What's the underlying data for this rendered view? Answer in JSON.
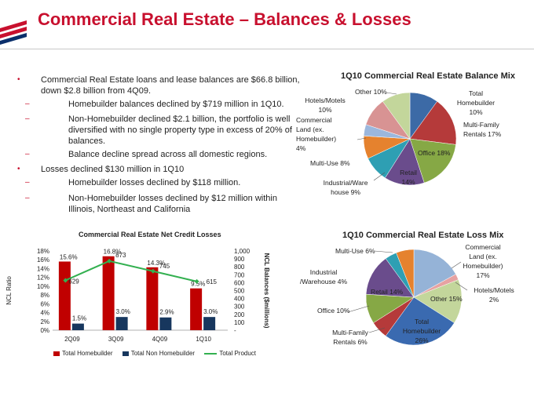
{
  "slide": {
    "title": "Commercial Real Estate – Balances & Losses"
  },
  "bullets": [
    {
      "level": 1,
      "text": "Commercial Real Estate loans and lease balances are $66.8 billion, down $2.8 billion from 4Q09."
    },
    {
      "level": 2,
      "text": "Homebuilder balances declined by $719 million in 1Q10."
    },
    {
      "level": 2,
      "text": "Non-Homebuilder  declined $2.1 billion, the portfolio is well diversified with no single property type in excess of 20% of balances."
    },
    {
      "level": 2,
      "text": "Balance decline spread across all domestic regions."
    },
    {
      "level": 1,
      "text": "Losses declined $130 million in 1Q10"
    },
    {
      "level": 2,
      "text": "Homebuilder losses declined by $118 million."
    },
    {
      "level": 2,
      "text": "Non-Homebuilder losses declined by $12 million within Illinois, Northeast and California"
    }
  ],
  "chart_data": [
    {
      "type": "bar",
      "title": "Commercial Real Estate Net Credit Losses",
      "categories": [
        "2Q09",
        "3Q09",
        "4Q09",
        "1Q10"
      ],
      "ylabel": "NCL Ratio",
      "y2label": "NCL Balances ($millions)",
      "ylim": [
        0,
        18
      ],
      "y2lim": [
        0,
        1000
      ],
      "yticks": [
        "0%",
        "2%",
        "4%",
        "6%",
        "8%",
        "10%",
        "12%",
        "14%",
        "16%",
        "18%"
      ],
      "y2ticks": [
        "-",
        "100",
        "200",
        "300",
        "400",
        "500",
        "600",
        "700",
        "800",
        "900",
        "1,000"
      ],
      "series": [
        {
          "name": "Total Homebuilder",
          "kind": "bar",
          "axis": "left",
          "color": "#c00000",
          "values": [
            15.6,
            16.8,
            14.3,
            9.5
          ],
          "labels": [
            "15.6%",
            "16.8%",
            "14.3%",
            "9.5%"
          ]
        },
        {
          "name": "Total Non Homebuilder",
          "kind": "bar",
          "axis": "left",
          "color": "#17375e",
          "values": [
            1.5,
            3.0,
            2.9,
            3.0
          ],
          "labels": [
            "1.5%",
            "3.0%",
            "2.9%",
            "3.0%"
          ]
        },
        {
          "name": "Total Product",
          "kind": "line",
          "axis": "right",
          "color": "#33b050",
          "values": [
            629,
            873,
            745,
            615
          ],
          "labels": [
            "629",
            "873",
            "745",
            "615"
          ]
        }
      ]
    },
    {
      "type": "pie",
      "title": "1Q10 Commercial Real Estate Balance Mix",
      "slices": [
        {
          "label": "Total Homebuilder 10%",
          "value": 10,
          "color": "#3c6aa6"
        },
        {
          "label": "Multi-Family Rentals 17%",
          "value": 17,
          "color": "#b53a3a"
        },
        {
          "label": "Office 18%",
          "value": 18,
          "color": "#86a845"
        },
        {
          "label": "Retail 14%",
          "value": 14,
          "color": "#6a4c8c"
        },
        {
          "label": "Industrial/Warehouse 9%",
          "value": 9,
          "color": "#2e9fb3"
        },
        {
          "label": "Multi-Use 8%",
          "value": 8,
          "color": "#e5822e"
        },
        {
          "label": "Commercial Land (ex. Homebuilder) 4%",
          "value": 4,
          "color": "#9bb7dd"
        },
        {
          "label": "Hotels/Motels 10%",
          "value": 10,
          "color": "#d89393"
        },
        {
          "label": "Other 10%",
          "value": 10,
          "color": "#c3d69b"
        }
      ]
    },
    {
      "type": "pie",
      "title": "1Q10 Commercial Real Estate Loss Mix",
      "slices": [
        {
          "label": "Commercial Land (ex. Homebuilder) 17%",
          "value": 17,
          "color": "#95b3d7"
        },
        {
          "label": "Hotels/Motels 2%",
          "value": 2,
          "color": "#e6a2a2"
        },
        {
          "label": "Other 15%",
          "value": 15,
          "color": "#c3d69b"
        },
        {
          "label": "Total Homebuilder 26%",
          "value": 26,
          "color": "#3a6ab0"
        },
        {
          "label": "Multi-Family Rentals 6%",
          "value": 6,
          "color": "#b53a3a"
        },
        {
          "label": "Office 10%",
          "value": 10,
          "color": "#86a845"
        },
        {
          "label": "Retail 14%",
          "value": 14,
          "color": "#6a4c8c"
        },
        {
          "label": "Industrial /Warehouse 4%",
          "value": 4,
          "color": "#2e9fb3"
        },
        {
          "label": "Multi-Use 6%",
          "value": 6,
          "color": "#e5822e"
        }
      ]
    }
  ],
  "pie_text": {
    "balance": {
      "other": "Other 10%",
      "homebuilder": [
        "Total",
        "Homebuilder",
        "10%"
      ],
      "hotels": [
        "Hotels/Motels",
        "10%"
      ],
      "land": [
        "Commercial",
        "Land (ex.",
        "Homebuilder)",
        "4%"
      ],
      "multifamily": [
        "Multi-Family",
        "Rentals 17%"
      ],
      "office": "Office 18%",
      "multiuse": "Multi-Use 8%",
      "retail": [
        "Retail",
        "14%"
      ],
      "industrial": [
        "Industrial/Ware",
        "house 9%"
      ]
    },
    "loss": {
      "multiuse": "Multi-Use 6%",
      "land": [
        "Commercial",
        "Land (ex.",
        "Homebuilder)",
        "17%"
      ],
      "industrial": [
        "Industrial",
        "/Warehouse 4%"
      ],
      "retail": "Retail 14%",
      "hotels": [
        "Hotels/Motels",
        "2%"
      ],
      "other": "Other 15%",
      "office": "Office 10%",
      "homebuilder": [
        "Total",
        "Homebuilder",
        "26%"
      ],
      "multifamily": [
        "Multi-Family",
        "Rentals 6%"
      ]
    }
  }
}
